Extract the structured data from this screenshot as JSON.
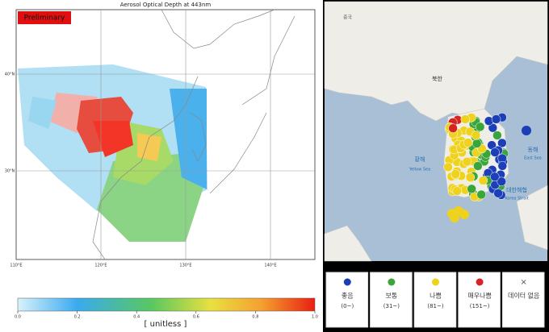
{
  "left_panel": {
    "badge": "Preliminary",
    "title": "Aerosol Optical Depth at 443nm",
    "lat_labels": [
      "40°N",
      "30°N"
    ],
    "lon_labels": [
      "110°E",
      "120°E",
      "130°E",
      "140°E"
    ],
    "colorbar": {
      "ticks": [
        "0.0",
        "0.2",
        "0.4",
        "0.6",
        "0.8",
        "1.0"
      ],
      "label": "[ unitless ]"
    }
  },
  "right_panel": {
    "map_labels": {
      "china": "중국",
      "north_korea": "북한",
      "yellow_sea_ko": "황해",
      "yellow_sea_en": "Yellow Sea",
      "east_sea_ko": "동해",
      "east_sea_en": "East Sea",
      "strait_ko": "대한해협",
      "strait_en": "Korea Strait"
    },
    "legend": [
      {
        "label": "좋음",
        "range": "(0~)",
        "color": "#1c3fb8"
      },
      {
        "label": "보통",
        "range": "(31~)",
        "color": "#3aa53a"
      },
      {
        "label": "나쁨",
        "range": "(81~)",
        "color": "#eed21e"
      },
      {
        "label": "매우나쁨",
        "range": "(151~)",
        "color": "#d42424"
      },
      {
        "label": "데이터 없음",
        "range": null,
        "color": null
      }
    ]
  }
}
